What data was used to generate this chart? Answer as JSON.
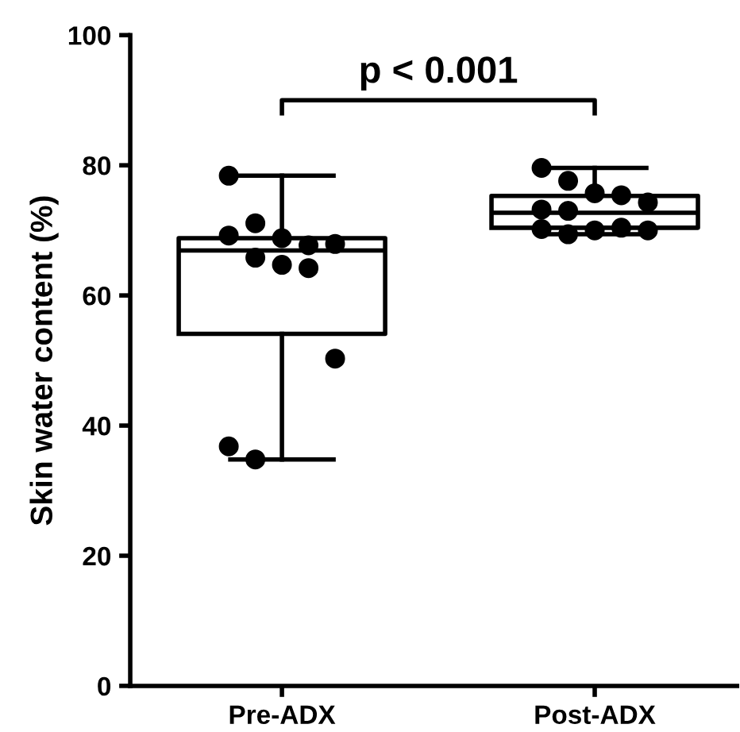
{
  "chart_data": {
    "type": "box",
    "ylabel": "Skin water content (%)",
    "categories": [
      "Pre-ADX",
      "Post-ADX"
    ],
    "boxes": [
      {
        "low": 34.8,
        "q1": 54.1,
        "median": 66.9,
        "q3": 68.8,
        "high": 78.4
      },
      {
        "low": 69.4,
        "q1": 70.4,
        "median": 72.7,
        "q3": 75.3,
        "high": 79.6
      }
    ],
    "series": [
      {
        "type": "scatter",
        "color": "#000000",
        "x": [
          "Pre-ADX",
          "Pre-ADX",
          "Pre-ADX",
          "Pre-ADX",
          "Pre-ADX",
          "Pre-ADX",
          "Pre-ADX",
          "Pre-ADX",
          "Pre-ADX",
          "Pre-ADX",
          "Pre-ADX",
          "Pre-ADX"
        ],
        "values": [
          78.4,
          71.1,
          68.8,
          67.7,
          67.9,
          69.2,
          65.8,
          64.7,
          64.2,
          50.3,
          36.8,
          34.8
        ]
      },
      {
        "type": "scatter",
        "color": "#000000",
        "x": [
          "Post-ADX",
          "Post-ADX",
          "Post-ADX",
          "Post-ADX",
          "Post-ADX",
          "Post-ADX",
          "Post-ADX",
          "Post-ADX",
          "Post-ADX",
          "Post-ADX",
          "Post-ADX",
          "Post-ADX"
        ],
        "values": [
          79.6,
          77.6,
          75.7,
          75.4,
          74.3,
          73.2,
          73.0,
          70.0,
          70.4,
          70.0,
          70.2,
          69.4
        ]
      }
    ],
    "ylim": [
      0,
      100
    ],
    "yticks": [
      0,
      20,
      40,
      60,
      80,
      100
    ],
    "grid": false,
    "marker": "circle",
    "annotations": [
      "p < 0.001"
    ]
  }
}
